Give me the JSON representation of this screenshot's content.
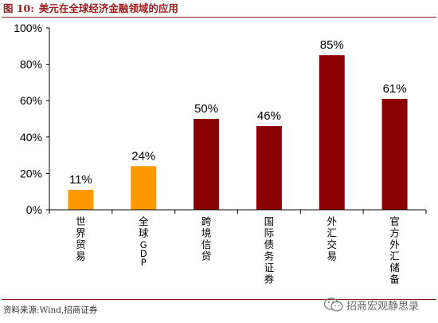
{
  "header": {
    "fig_label": "图 10:",
    "title": "美元在全球经济金融领域的应用"
  },
  "footer": {
    "source": "资料来源:Wind,招商证券",
    "brand": "招商宏观静思录"
  },
  "icons": {
    "brand": "wechat-icon"
  },
  "colors": {
    "series_a": "#ff9900",
    "series_b": "#8b0000",
    "title": "#9b1c1c",
    "rule": "#8b1a1a"
  },
  "chart_data": {
    "type": "bar",
    "title": "",
    "xlabel": "",
    "ylabel": "",
    "ylim": [
      0,
      100
    ],
    "yticks": [
      "0%",
      "20%",
      "40%",
      "60%",
      "80%",
      "100%"
    ],
    "ytick_values": [
      0,
      20,
      40,
      60,
      80,
      100
    ],
    "categories": [
      "世界贸易",
      "全球GDP",
      "跨境信贷",
      "国际债务证券",
      "外汇交易",
      "官方外汇储备"
    ],
    "values": [
      11,
      24,
      50,
      46,
      85,
      61
    ],
    "data_labels": [
      "11%",
      "24%",
      "50%",
      "46%",
      "85%",
      "61%"
    ],
    "bar_colors": [
      "#ff9900",
      "#ff9900",
      "#8b0000",
      "#8b0000",
      "#8b0000",
      "#8b0000"
    ],
    "grid": false,
    "legend": "none"
  }
}
